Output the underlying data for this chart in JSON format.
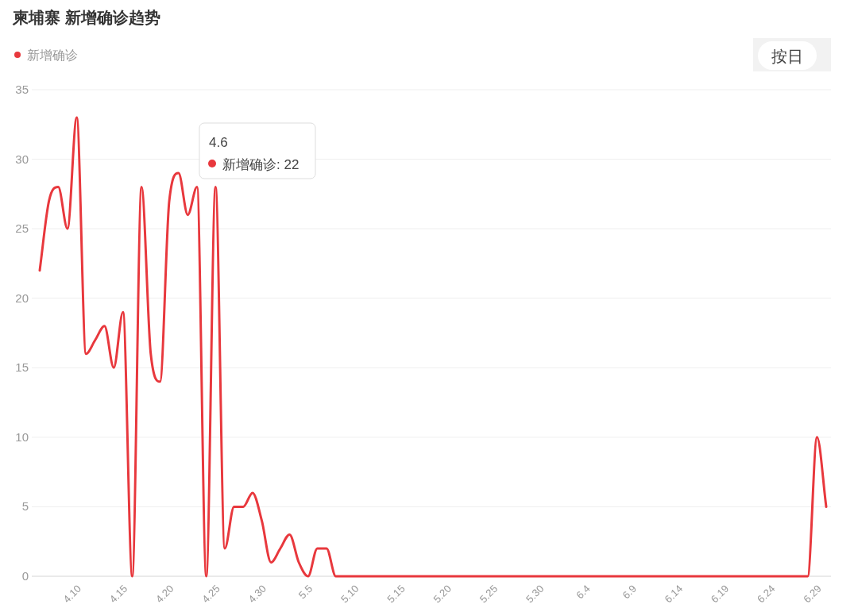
{
  "chart_data": {
    "type": "line",
    "title": "柬埔寨 新增确诊趋势",
    "categories": [
      null,
      null,
      null,
      null,
      "4.10",
      null,
      null,
      null,
      null,
      "4.15",
      null,
      null,
      null,
      null,
      "4.20",
      null,
      null,
      null,
      null,
      "4.25",
      null,
      null,
      null,
      null,
      "4.30",
      null,
      null,
      null,
      null,
      "5.5",
      null,
      null,
      null,
      null,
      "5.10",
      null,
      null,
      null,
      null,
      "5.15",
      null,
      null,
      null,
      null,
      "5.20",
      null,
      null,
      null,
      null,
      "5.25",
      null,
      null,
      null,
      null,
      "5.30",
      null,
      null,
      null,
      null,
      "6.4",
      null,
      null,
      null,
      null,
      "6.9",
      null,
      null,
      null,
      null,
      "6.14",
      null,
      null,
      null,
      null,
      "6.19",
      null,
      null,
      null,
      null,
      "6.24",
      null,
      null,
      null,
      null,
      "6.29",
      null
    ],
    "series": [
      {
        "name": "新增确诊",
        "color": "#e8383d",
        "values": [
          22,
          27,
          28,
          25,
          33,
          16,
          17,
          18,
          15,
          19,
          0,
          28,
          16,
          14,
          27,
          29,
          26,
          28,
          0,
          28,
          2,
          5,
          5,
          6,
          4,
          1,
          2,
          3,
          1,
          0,
          2,
          2,
          0,
          0,
          0,
          0,
          0,
          0,
          0,
          0,
          0,
          0,
          0,
          0,
          0,
          0,
          0,
          0,
          0,
          0,
          0,
          0,
          0,
          0,
          0,
          0,
          0,
          0,
          0,
          0,
          0,
          0,
          0,
          0,
          0,
          0,
          0,
          0,
          0,
          0,
          0,
          0,
          0,
          0,
          0,
          0,
          0,
          0,
          0,
          0,
          0,
          0,
          0,
          0,
          10,
          5
        ]
      }
    ],
    "ylim": [
      0,
      35
    ],
    "yticks": [
      0,
      5,
      10,
      15,
      20,
      25,
      30,
      35
    ],
    "grid": "y",
    "legend": "top left",
    "marker": "none",
    "line_style": "solid",
    "annotations": [
      "4.6",
      "新增确诊: 22",
      "按日"
    ]
  }
}
